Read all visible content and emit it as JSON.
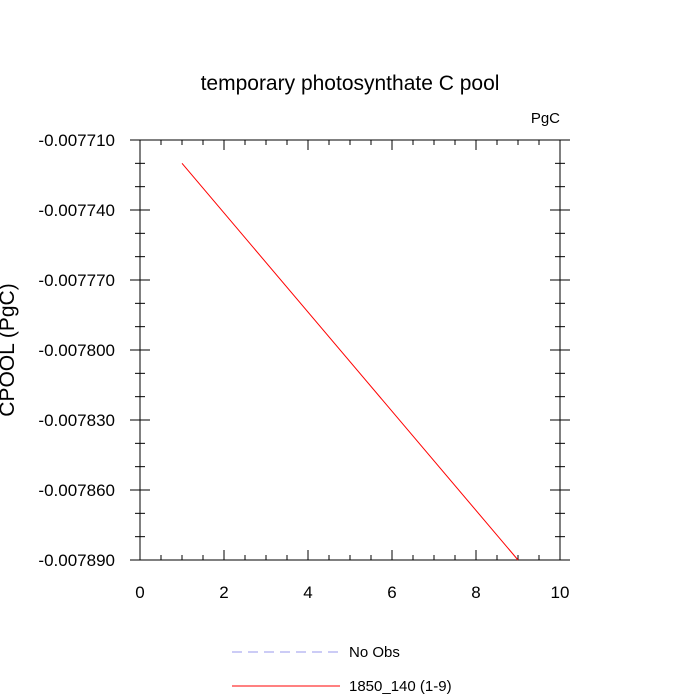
{
  "chart_data": {
    "type": "line",
    "title": "temporary photosynthate C pool",
    "units_label": "PgC",
    "ylabel": "CPOOL (PgC)",
    "xlabel": "",
    "xlim": [
      0,
      10
    ],
    "ylim": [
      -0.00789,
      -0.00771
    ],
    "x_ticks": [
      0,
      2,
      4,
      6,
      8,
      10
    ],
    "x_tick_labels": [
      "0",
      "2",
      "4",
      "6",
      "8",
      "10"
    ],
    "y_ticks": [
      -0.00771,
      -0.00774,
      -0.00777,
      -0.0078,
      -0.00783,
      -0.00786,
      -0.00789
    ],
    "y_tick_labels": [
      "-0.007710",
      "-0.007740",
      "-0.007770",
      "-0.007800",
      "-0.007830",
      "-0.007860",
      "-0.007890"
    ],
    "grid": false,
    "legend_position": "bottom",
    "series": [
      {
        "name": "No Obs",
        "color": "#9999ee",
        "dash": "dashed",
        "x": [],
        "y": []
      },
      {
        "name": "1850_140 (1-9)",
        "color": "#ff0000",
        "dash": "solid",
        "x": [
          1,
          9
        ],
        "y": [
          -0.00772,
          -0.00789
        ]
      }
    ]
  }
}
